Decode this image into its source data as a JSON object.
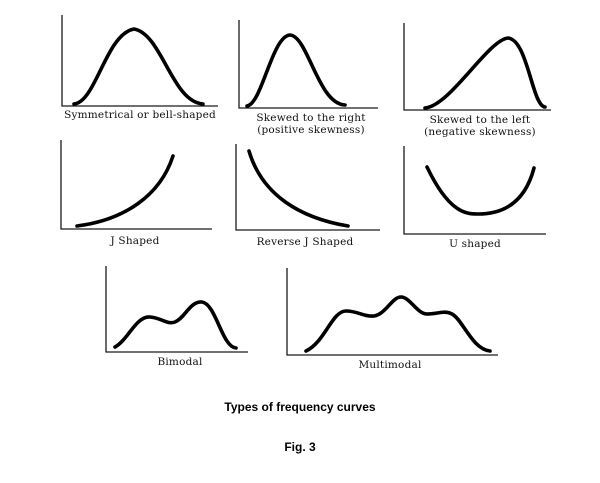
{
  "panels": [
    {
      "key": "bell",
      "shape": "symmetrical-bell",
      "label": "Symmetrical or bell-shaped"
    },
    {
      "key": "right",
      "shape": "right-skewed",
      "label": "Skewed to the right",
      "sublabel": "(positive skewness)"
    },
    {
      "key": "left",
      "shape": "left-skewed",
      "label": "Skewed to the left",
      "sublabel": "(negative skewness)"
    },
    {
      "key": "j",
      "shape": "j-shaped",
      "label": "J Shaped"
    },
    {
      "key": "revj",
      "shape": "reverse-j",
      "label": "Reverse J Shaped"
    },
    {
      "key": "u",
      "shape": "u-shaped",
      "label": "U shaped"
    },
    {
      "key": "bimodal",
      "shape": "bimodal",
      "label": "Bimodal"
    },
    {
      "key": "multimodal",
      "shape": "multimodal",
      "label": "Multimodal"
    }
  ],
  "caption": "Types of frequency curves",
  "figure_label": "Fig. 3",
  "colors": {
    "curve": "#000000",
    "axis": "#1a1a1a",
    "background": "#ffffff"
  }
}
